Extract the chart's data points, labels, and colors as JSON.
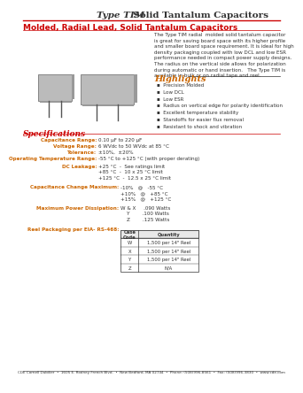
{
  "title_italic": "Type TIM",
  "title_bold": "  Solid Tantalum Capacitors",
  "subtitle": "Molded, Radial Lead, Solid Tantalum Capacitors",
  "description": "The Type TIM radial  molded solid tantalum capacitor\nis great for saving board space with its higher profile\nand smaller board space requirement. It is ideal for high\ndensity packaging coupled with low DCL and low ESR\nperformance needed in compact power supply designs.\nThe radius on the vertical side allows for polarization\nduring automatic or hand insertion.   The Type TIM is\navailable in bulk or on radial tape and reel.",
  "highlights_title": "Highlights",
  "highlights": [
    "Precision Molded",
    "Low DCL",
    "Low ESR",
    "Radius on vertical edge for polarity identification",
    "Excellent temperature stability",
    "Standoffs for easier flux removal",
    "Resistant to shock and vibration"
  ],
  "spec_title": "Specifications",
  "spec_cap_range_label": "Capacitance Range:",
  "spec_cap_range_val": "0.10 µF to 220 µF",
  "spec_volt_label": "Voltage Range:",
  "spec_volt_val": "6 WVdc to 50 WVdc at 85 °C",
  "spec_tol_label": "Tolerance:",
  "spec_tol_val": "±10%,  ±20%",
  "spec_temp_label": "Operating Temperature Range:",
  "spec_temp_val": "-55 °C to +125 °C (with proper derating)",
  "dc_leak_label": "DC Leakage:",
  "dc_leak_lines": [
    "+25 °C  -  See ratings limit",
    "+85 °C  -  10 x 25 °C limit",
    "+125 °C  -  12.5 x 25 °C limit"
  ],
  "cap_change_label": "Capacitance Change Maximum:",
  "cap_change_lines": [
    "-10%   @   -55 °C",
    "+10%   @   +85 °C",
    "+15%   @   +125 °C"
  ],
  "max_power_label": "Maximum Power Dissipation:",
  "max_power_lines": [
    "W & X     .090 Watts",
    "    Y        .100 Watts",
    "    Z        .125 Watts"
  ],
  "reel_label": "Reel Packaging per EIA- RS-468:",
  "reel_table_rows": [
    [
      "W",
      "1,500 per 14\" Reel"
    ],
    [
      "X",
      "1,500 per 14\" Reel"
    ],
    [
      "Y",
      "1,500 per 14\" Reel"
    ],
    [
      "Z",
      "N/A"
    ]
  ],
  "footer": "CDE Cornell Dubilier  •  1605 E. Rodney French Blvd.  •  New Bedford, MA 02744  •  Phone: (508)996-8561  •  Fax: (508)996-3830  •  www.cde.com",
  "red_color": "#CC0000",
  "orange_color": "#CC6600",
  "dark_color": "#333333",
  "bg_color": "#FFFFFF"
}
